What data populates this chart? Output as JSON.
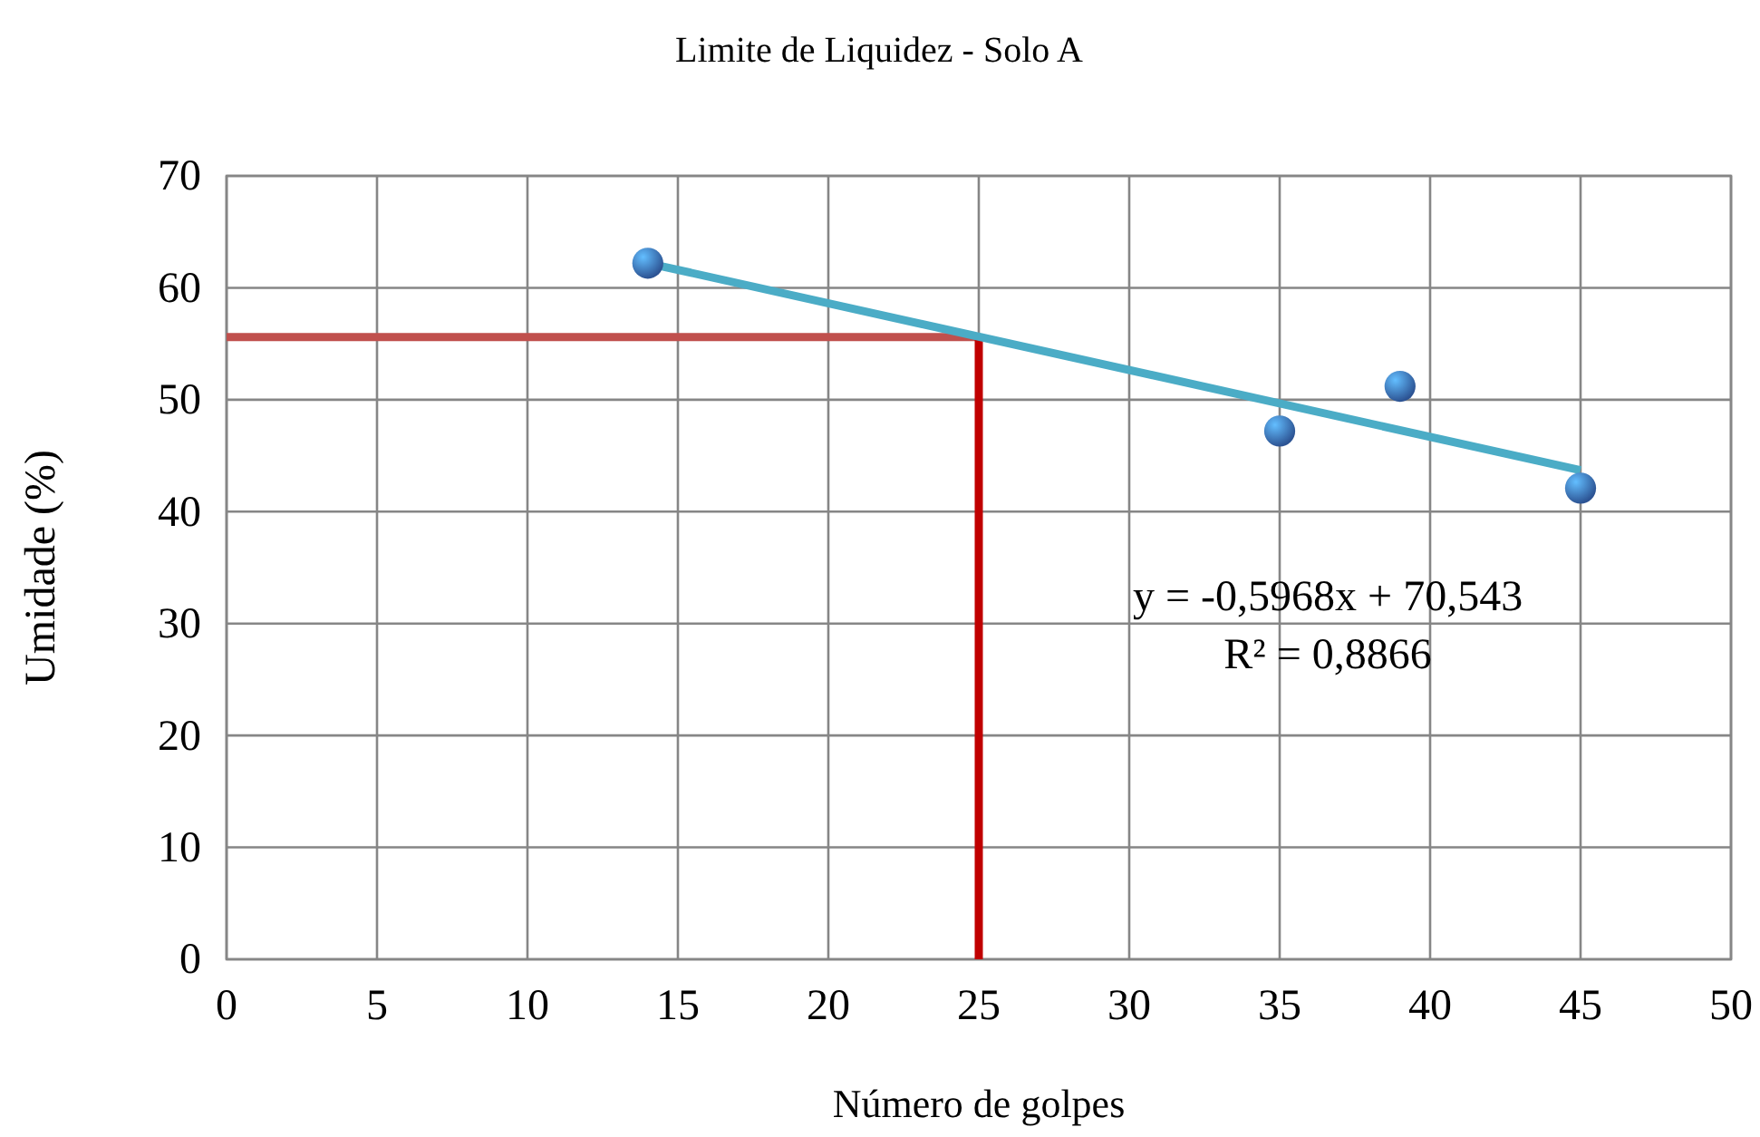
{
  "chart_data": {
    "type": "scatter",
    "title": "Limite de Liquidez - Solo A",
    "xlabel": "Número de golpes",
    "ylabel": "Umidade (%)",
    "xlim": [
      0,
      50
    ],
    "xticks": [
      0,
      5,
      10,
      15,
      20,
      25,
      30,
      35,
      40,
      45,
      50
    ],
    "ylim": [
      0,
      70
    ],
    "yticks": [
      0,
      10,
      20,
      30,
      40,
      50,
      60,
      70
    ],
    "grid": true,
    "series": [
      {
        "type": "line",
        "color": "#c0504d",
        "x": [
          0,
          25
        ],
        "values": [
          55.6,
          55.6
        ],
        "marker": "none"
      },
      {
        "type": "line",
        "color": "#c00000",
        "x": [
          25,
          25
        ],
        "values": [
          55.6,
          0
        ],
        "marker": "none"
      },
      {
        "type": "line",
        "color": "#4bacc6",
        "x": [
          14,
          45
        ],
        "values": [
          62.2,
          43.7
        ],
        "marker": "none"
      },
      {
        "color": "#3a6fc4",
        "x": [
          14,
          35,
          39,
          45
        ],
        "values": [
          62.2,
          47.2,
          51.2,
          42.1
        ],
        "marker": "circle"
      }
    ],
    "annotations": [
      "y = -0,5968x + 70,543",
      "R² = 0,8866"
    ]
  }
}
